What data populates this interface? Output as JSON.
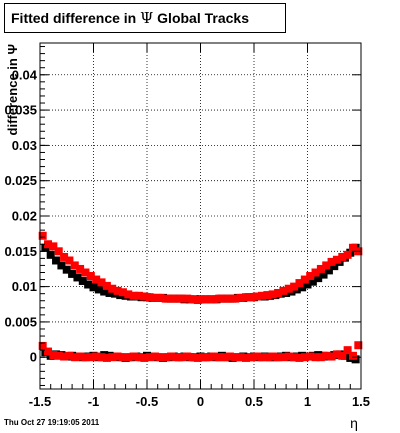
{
  "title": {
    "prefix": "Fitted difference in",
    "symbol": "Ψ",
    "suffix": "Global Tracks"
  },
  "timestamp": "Thu Oct 27 19:19:05 2011",
  "chart_data": {
    "type": "scatter",
    "title": "Fitted difference in Ψ Global Tracks",
    "xlabel": "η",
    "ylabel": "difference in Ψ",
    "xlim": [
      -1.5,
      1.5
    ],
    "ylim": [
      -0.0045,
      0.0445
    ],
    "xticks": [
      -1.5,
      -1,
      -0.5,
      0,
      0.5,
      1,
      1.5
    ],
    "xtick_labels": [
      "-1.5",
      "-1",
      "-0.5",
      "0",
      "0.5",
      "1",
      "1.5"
    ],
    "yticks": [
      0,
      0.005,
      0.01,
      0.015,
      0.02,
      0.025,
      0.03,
      0.035,
      0.04
    ],
    "ytick_labels": [
      "0",
      "0.005",
      "0.01",
      "0.015",
      "0.02",
      "0.025",
      "0.03",
      "0.035",
      "0.04"
    ],
    "grid": true,
    "colors": {
      "black_series": "#000000",
      "red_series": "#ff0000"
    },
    "series": [
      {
        "color": "#000000",
        "marker": "square",
        "x": [
          -1.45,
          -1.4,
          -1.35,
          -1.3,
          -1.25,
          -1.2,
          -1.15,
          -1.1,
          -1.05,
          -1.0,
          -0.95,
          -0.9,
          -0.85,
          -0.8,
          -0.75,
          -0.7,
          -0.65,
          -0.6,
          -0.55,
          -0.5,
          -0.45,
          -0.4,
          -0.35,
          -0.3,
          -0.25,
          -0.2,
          -0.15,
          -0.1,
          -0.05,
          0.0,
          0.05,
          0.1,
          0.15,
          0.2,
          0.25,
          0.3,
          0.35,
          0.4,
          0.45,
          0.5,
          0.55,
          0.6,
          0.65,
          0.7,
          0.75,
          0.8,
          0.85,
          0.9,
          0.95,
          1.0,
          1.05,
          1.1,
          1.15,
          1.2,
          1.25,
          1.3,
          1.35,
          1.4,
          1.45
        ],
        "y": [
          0.0155,
          0.0145,
          0.0137,
          0.013,
          0.0124,
          0.0118,
          0.0113,
          0.0108,
          0.0103,
          0.0099,
          0.0096,
          0.0093,
          0.0091,
          0.009,
          0.0088,
          0.0087,
          0.0086,
          0.0086,
          0.0085,
          0.0085,
          0.0084,
          0.0084,
          0.0084,
          0.0083,
          0.0083,
          0.0083,
          0.0082,
          0.0082,
          0.0082,
          0.0082,
          0.0082,
          0.0082,
          0.0082,
          0.0083,
          0.0083,
          0.0083,
          0.0084,
          0.0084,
          0.0085,
          0.0085,
          0.0086,
          0.0086,
          0.0087,
          0.0088,
          0.009,
          0.0091,
          0.0093,
          0.0096,
          0.0099,
          0.0103,
          0.0107,
          0.0112,
          0.0117,
          0.0123,
          0.0129,
          0.0135,
          0.0141,
          0.0148,
          0.0155
        ]
      },
      {
        "color": "#ff0000",
        "marker": "square",
        "x": [
          -1.475,
          -1.425,
          -1.375,
          -1.325,
          -1.275,
          -1.225,
          -1.175,
          -1.125,
          -1.075,
          -1.025,
          -0.975,
          -0.925,
          -0.875,
          -0.825,
          -0.775,
          -0.725,
          -0.675,
          -0.625,
          -0.575,
          -0.525,
          -0.475,
          -0.425,
          -0.375,
          -0.325,
          -0.275,
          -0.225,
          -0.175,
          -0.125,
          -0.075,
          -0.025,
          0.025,
          0.075,
          0.125,
          0.175,
          0.225,
          0.275,
          0.325,
          0.375,
          0.425,
          0.475,
          0.525,
          0.575,
          0.625,
          0.675,
          0.725,
          0.775,
          0.825,
          0.875,
          0.925,
          0.975,
          1.025,
          1.075,
          1.125,
          1.175,
          1.225,
          1.275,
          1.325,
          1.375,
          1.425,
          1.475
        ],
        "y": [
          0.0172,
          0.016,
          0.0157,
          0.015,
          0.0142,
          0.0137,
          0.013,
          0.0125,
          0.012,
          0.0115,
          0.011,
          0.0106,
          0.0101,
          0.0097,
          0.0094,
          0.0092,
          0.0089,
          0.0087,
          0.0087,
          0.0086,
          0.0085,
          0.0084,
          0.0084,
          0.0083,
          0.0083,
          0.0083,
          0.0083,
          0.0083,
          0.0082,
          0.0081,
          0.0082,
          0.0082,
          0.0082,
          0.0083,
          0.0083,
          0.0083,
          0.0083,
          0.0084,
          0.0085,
          0.0085,
          0.0086,
          0.0087,
          0.0088,
          0.0089,
          0.0091,
          0.0094,
          0.0097,
          0.01,
          0.0105,
          0.011,
          0.0115,
          0.012,
          0.0125,
          0.013,
          0.0135,
          0.0138,
          0.0142,
          0.0145,
          0.0155,
          0.015
        ]
      },
      {
        "color": "#000000",
        "marker": "square",
        "x": [
          -1.45,
          -1.4,
          -1.35,
          -1.3,
          -1.25,
          -1.2,
          -1.15,
          -1.1,
          -1.05,
          -1.0,
          -0.95,
          -0.9,
          -0.85,
          -0.8,
          -0.75,
          -0.7,
          -0.65,
          -0.6,
          -0.55,
          -0.5,
          -0.45,
          -0.4,
          -0.35,
          -0.3,
          -0.25,
          -0.2,
          -0.15,
          -0.1,
          -0.05,
          0.0,
          0.05,
          0.1,
          0.15,
          0.2,
          0.25,
          0.3,
          0.35,
          0.4,
          0.45,
          0.5,
          0.55,
          0.6,
          0.65,
          0.7,
          0.75,
          0.8,
          0.85,
          0.9,
          0.95,
          1.0,
          1.05,
          1.1,
          1.15,
          1.2,
          1.25,
          1.3,
          1.35,
          1.4,
          1.45
        ],
        "y": [
          0.0007,
          0.0002,
          0.0004,
          0.0003,
          0.0001,
          0.0002,
          0.0001,
          0.0,
          0.0001,
          0.0002,
          0.0,
          0.0003,
          0.0002,
          0.0001,
          0.0,
          -0.0001,
          0.0,
          0.0001,
          0.0,
          0.0002,
          0.0001,
          0.0,
          -0.0001,
          0.0,
          0.0001,
          0.0,
          0.0001,
          0.0,
          0.0,
          0.0001,
          0.0,
          0.0001,
          0.0,
          0.0002,
          0.0,
          -0.0001,
          0.0,
          0.0001,
          0.0,
          0.0001,
          0.0,
          0.0001,
          0.0,
          0.0,
          0.0001,
          0.0002,
          0.0,
          0.0001,
          0.0002,
          0.0001,
          0.0002,
          0.0003,
          0.0002,
          0.0001,
          0.0003,
          0.0004,
          0.0002,
          -0.0001,
          -0.0003
        ]
      },
      {
        "color": "#ff0000",
        "marker": "square",
        "x": [
          -1.475,
          -1.425,
          -1.375,
          -1.325,
          -1.275,
          -1.225,
          -1.175,
          -1.125,
          -1.075,
          -1.025,
          -0.975,
          -0.925,
          -0.875,
          -0.825,
          -0.775,
          -0.725,
          -0.675,
          -0.625,
          -0.575,
          -0.525,
          -0.475,
          -0.425,
          -0.375,
          -0.325,
          -0.275,
          -0.225,
          -0.175,
          -0.125,
          -0.075,
          -0.025,
          0.025,
          0.075,
          0.125,
          0.175,
          0.225,
          0.275,
          0.325,
          0.375,
          0.425,
          0.475,
          0.525,
          0.575,
          0.625,
          0.675,
          0.725,
          0.775,
          0.825,
          0.875,
          0.925,
          0.975,
          1.025,
          1.075,
          1.125,
          1.175,
          1.225,
          1.275,
          1.325,
          1.375,
          1.425,
          1.475
        ],
        "y": [
          0.0016,
          0.0008,
          0.0003,
          0.0002,
          0.0001,
          0.0002,
          0.0,
          0.0001,
          0.0,
          0.0,
          0.0001,
          0.0,
          -0.0001,
          0.0,
          0.0001,
          0.0,
          0.0,
          0.0001,
          0.0,
          -0.0001,
          0.0,
          0.0001,
          0.0,
          0.0,
          0.0001,
          0.0,
          0.0,
          0.0001,
          0.0,
          -0.0001,
          0.0,
          0.0,
          0.0001,
          0.0,
          0.0,
          0.0001,
          0.0,
          0.0,
          -0.0001,
          0.0,
          0.0001,
          0.0,
          0.0,
          0.0001,
          0.0,
          0.0,
          0.0001,
          0.0,
          -0.0001,
          0.0,
          0.0001,
          0.0,
          0.0,
          0.0002,
          0.0001,
          0.0004,
          0.0002,
          0.001,
          0.0002,
          0.0017
        ]
      }
    ]
  }
}
